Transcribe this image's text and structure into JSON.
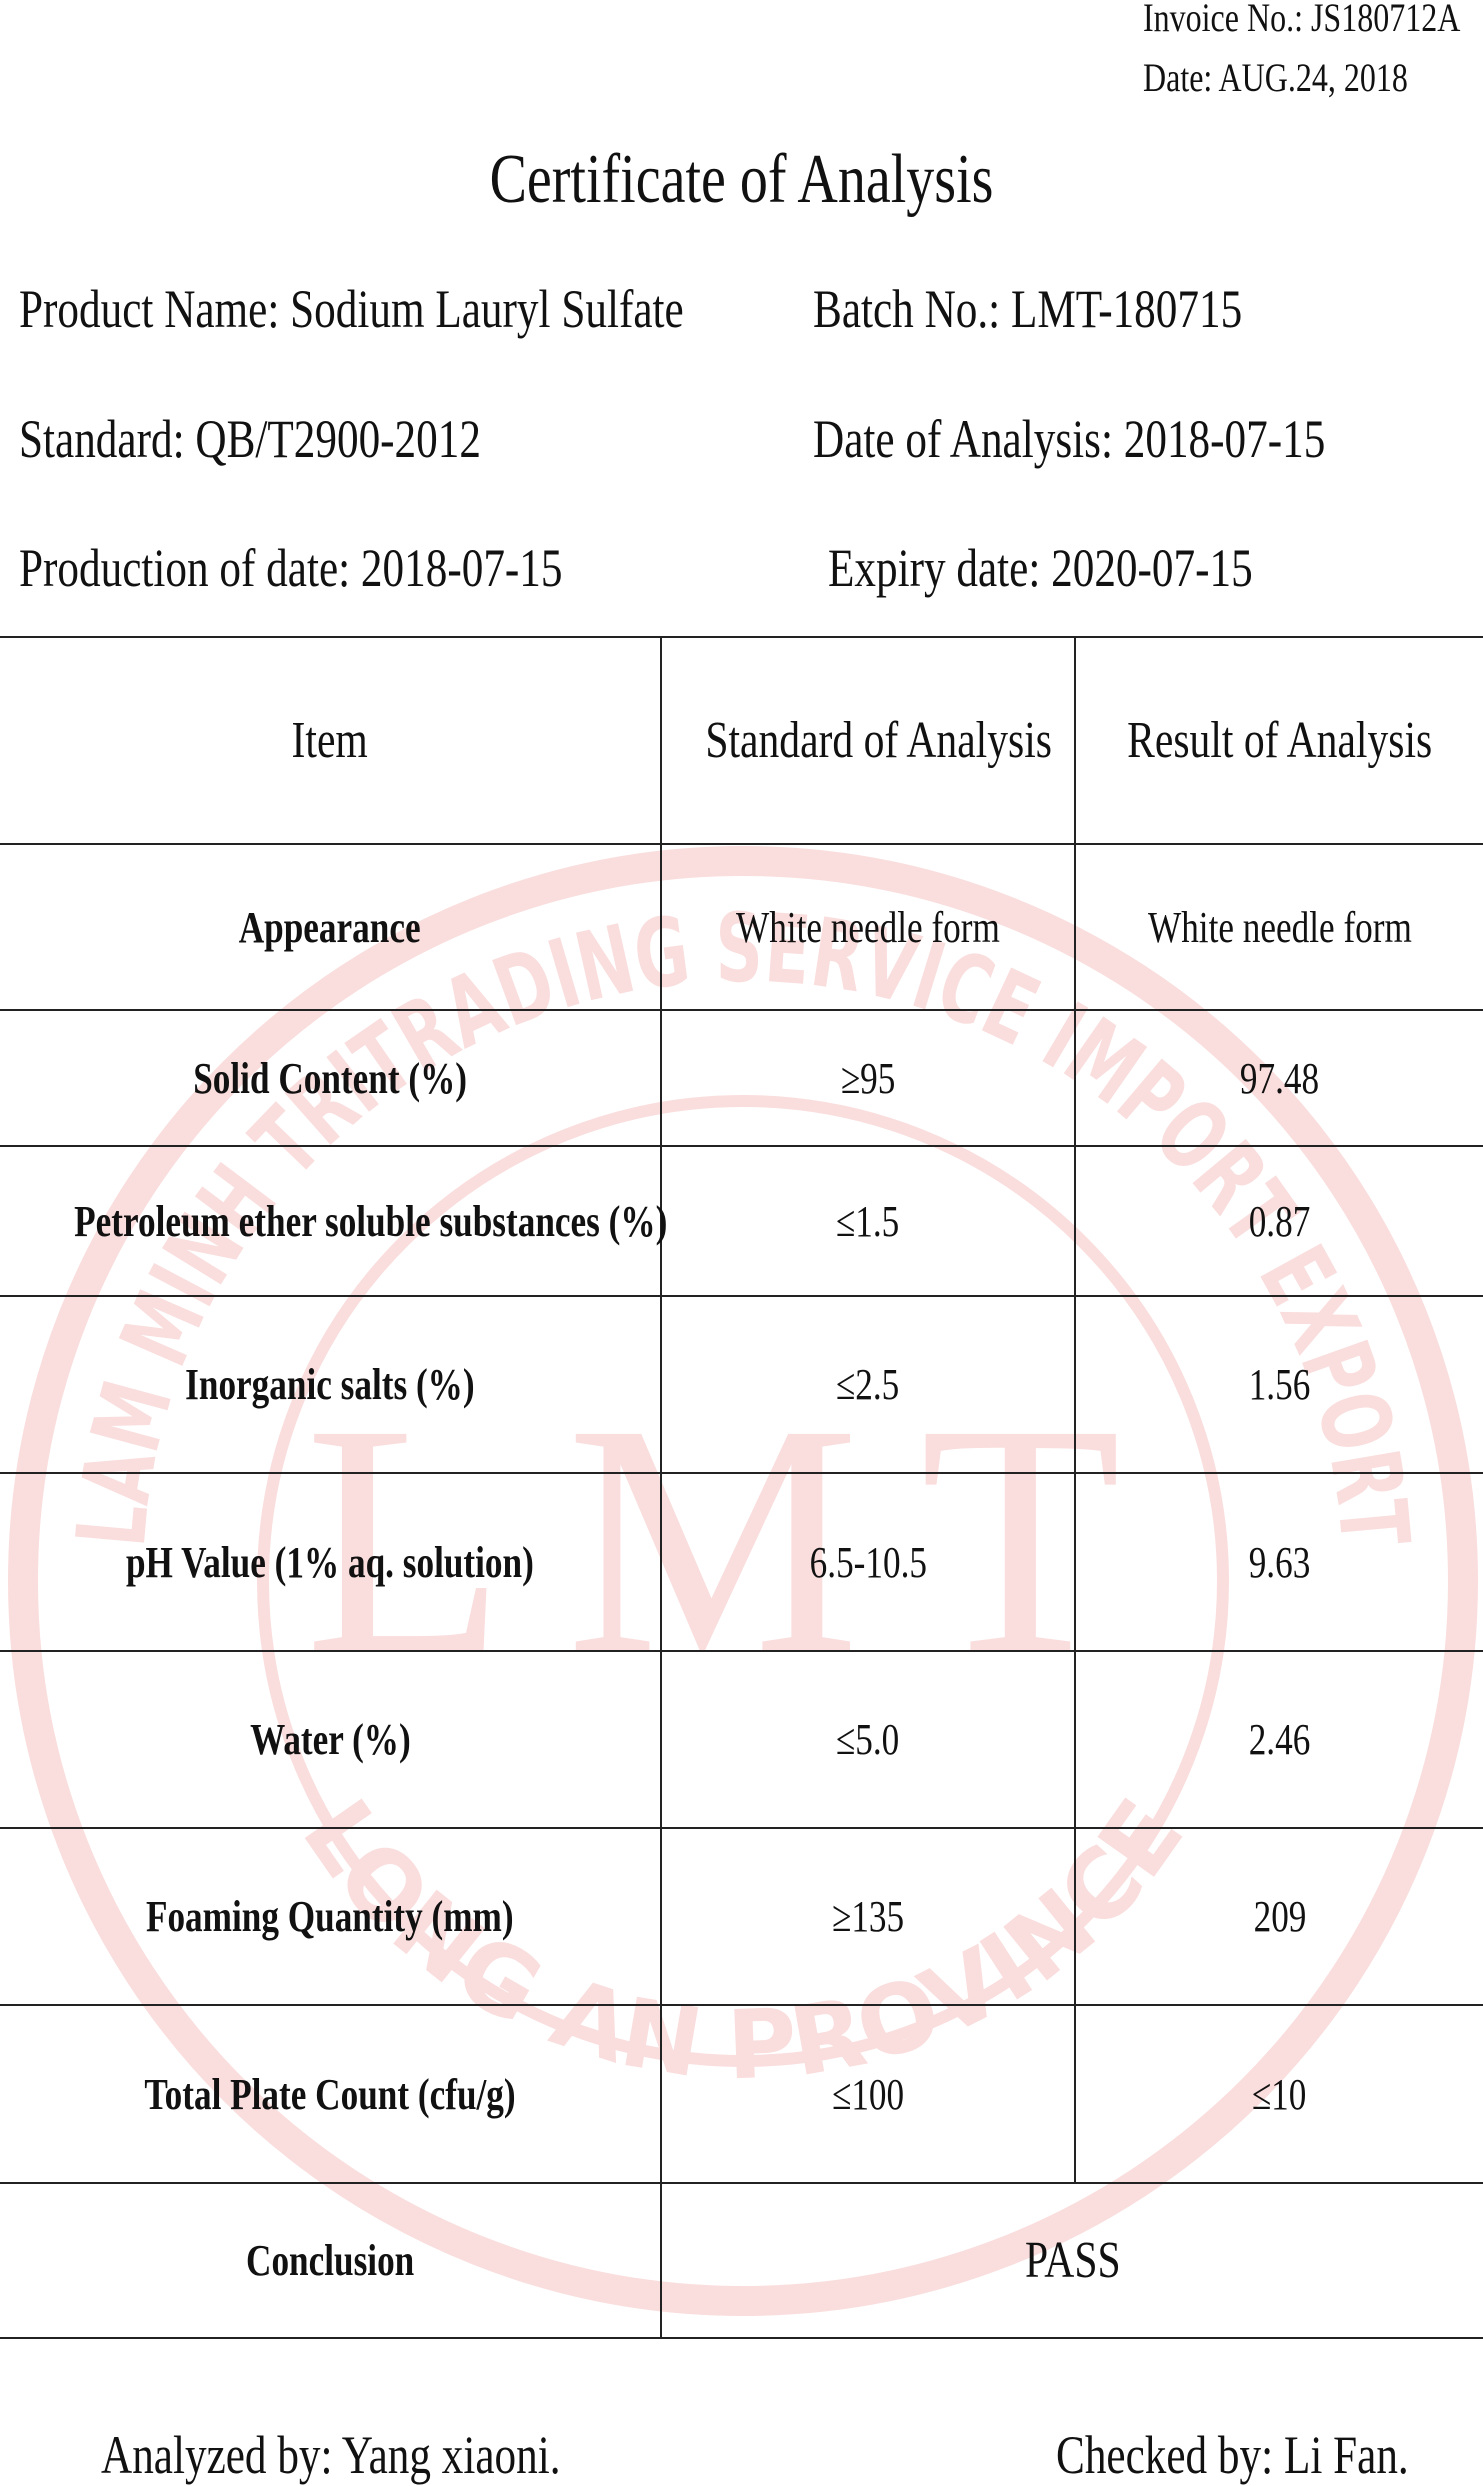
{
  "header": {
    "invoice_no": "Invoice No.: JS180712A",
    "date": "Date: AUG.24, 2018",
    "title": "Certificate of Analysis"
  },
  "info": [
    [
      "Product Name: Sodium Lauryl Sulfate",
      "Batch No.: LMT-180715"
    ],
    [
      "Standard: QB/T2900-2012",
      "Date of Analysis: 2018-07-15"
    ],
    [
      "Production of date: 2018-07-15",
      "Expiry date: 2020-07-15"
    ]
  ],
  "table": {
    "header": [
      "Item",
      "Standard of Analysis",
      "Result of Analysis"
    ],
    "rows": [
      [
        "Appearance",
        "White needle form",
        "White needle form"
      ],
      [
        "Solid Content (%)",
        "≥95",
        "97.48"
      ],
      [
        "Petroleum ether soluble substances (%)",
        "≤1.5",
        "0.87"
      ],
      [
        "Inorganic salts (%)",
        "≤2.5",
        "1.56"
      ],
      [
        "pH Value (1% aq. solution)",
        "6.5-10.5",
        "9.63"
      ],
      [
        "Water (%)",
        "≤5.0",
        "2.46"
      ],
      [
        "Foaming Quantity (mm)",
        "≥135",
        "209"
      ],
      [
        "Total Plate Count (cfu/g)",
        "≤100",
        "≤10"
      ]
    ],
    "conclusion": {
      "label": "Conclusion",
      "value": "PASS"
    }
  },
  "footer": {
    "analyzed_by": "Analyzed by: Yang xiaoni.",
    "checked_by": "Checked by: Li Fan."
  },
  "stamp": {
    "top": "LAM MINH TRITRADING SERVICE IMPORT EXPORT",
    "bottom": "LONG AN PROVINCE",
    "logo": "LMT"
  }
}
